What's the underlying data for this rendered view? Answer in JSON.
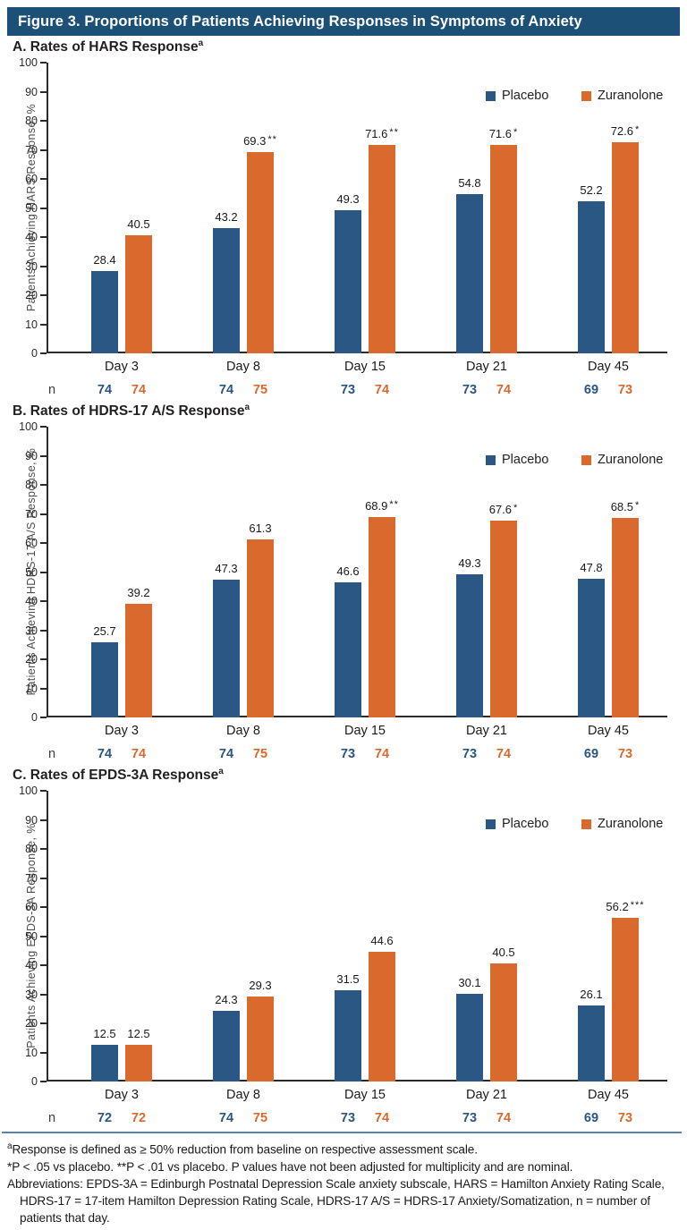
{
  "figure": {
    "title": "Figure 3. Proportions of Patients Achieving Responses in Symptoms of Anxiety"
  },
  "colors": {
    "placebo": "#2a5783",
    "zuranolone": "#d9692c",
    "title_bar": "#1d5077",
    "footer_rule": "#5b82ae"
  },
  "n_label": "n",
  "chart_data": [
    {
      "type": "bar",
      "panel": "A. Rates of HARS Response",
      "panel_sup": "a",
      "ylabel": "Patients Achieving HARS Response, %",
      "ylim": [
        0,
        100
      ],
      "ytick_step": 10,
      "grid": false,
      "legend_position": "top-right-inside",
      "categories": [
        "Day 3",
        "Day 8",
        "Day 15",
        "Day 21",
        "Day 45"
      ],
      "series": [
        {
          "name": "Placebo",
          "values": [
            28.4,
            43.2,
            49.3,
            54.8,
            52.2
          ],
          "sig": [
            "",
            "",
            "",
            "",
            ""
          ],
          "n": [
            74,
            74,
            73,
            73,
            69
          ]
        },
        {
          "name": "Zuranolone",
          "values": [
            40.5,
            69.3,
            71.6,
            71.6,
            72.6
          ],
          "sig": [
            "",
            "**",
            "**",
            "*",
            "*"
          ],
          "n": [
            74,
            75,
            74,
            74,
            73
          ]
        }
      ]
    },
    {
      "type": "bar",
      "panel": "B. Rates of HDRS-17 A/S Response",
      "panel_sup": "a",
      "ylabel": "Patients Achieving HDRS-17 A/S Response, %",
      "ylim": [
        0,
        100
      ],
      "ytick_step": 10,
      "grid": false,
      "legend_position": "top-right-inside",
      "categories": [
        "Day 3",
        "Day 8",
        "Day 15",
        "Day 21",
        "Day 45"
      ],
      "series": [
        {
          "name": "Placebo",
          "values": [
            25.7,
            47.3,
            46.6,
            49.3,
            47.8
          ],
          "sig": [
            "",
            "",
            "",
            "",
            ""
          ],
          "n": [
            74,
            74,
            73,
            73,
            69
          ]
        },
        {
          "name": "Zuranolone",
          "values": [
            39.2,
            61.3,
            68.9,
            67.6,
            68.5
          ],
          "sig": [
            "",
            "",
            "**",
            "*",
            "*"
          ],
          "n": [
            74,
            75,
            74,
            74,
            73
          ]
        }
      ]
    },
    {
      "type": "bar",
      "panel": "C. Rates of EPDS-3A Response",
      "panel_sup": "a",
      "ylabel": "Patients Achieving EPDS-3A Response, %",
      "ylim": [
        0,
        100
      ],
      "ytick_step": 10,
      "grid": false,
      "legend_position": "top-right-inside",
      "categories": [
        "Day 3",
        "Day 8",
        "Day 15",
        "Day 21",
        "Day 45"
      ],
      "series": [
        {
          "name": "Placebo",
          "values": [
            12.5,
            24.3,
            31.5,
            30.1,
            26.1
          ],
          "sig": [
            "",
            "",
            "",
            "",
            ""
          ],
          "n": [
            72,
            74,
            73,
            73,
            69
          ]
        },
        {
          "name": "Zuranolone",
          "values": [
            12.5,
            29.3,
            44.6,
            40.5,
            56.2
          ],
          "sig": [
            "",
            "",
            "",
            "",
            "***"
          ],
          "n": [
            72,
            75,
            74,
            74,
            73
          ]
        }
      ]
    }
  ],
  "footnotes": {
    "line1_sup": "a",
    "line1": "Response is defined as ≥ 50% reduction from baseline on respective assessment scale.",
    "line2": "*P < .05 vs placebo.  **P < .01 vs placebo. P values have not been adjusted for multiplicity and are nominal.",
    "line3": "Abbreviations: EPDS-3A = Edinburgh Postnatal Depression Scale anxiety subscale, HARS = Hamilton Anxiety Rating Scale, HDRS-17 = 17-item Hamilton Depression Rating Scale, HDRS-17 A/S = HDRS-17 Anxiety/Somatization, n = number of patients that day."
  }
}
